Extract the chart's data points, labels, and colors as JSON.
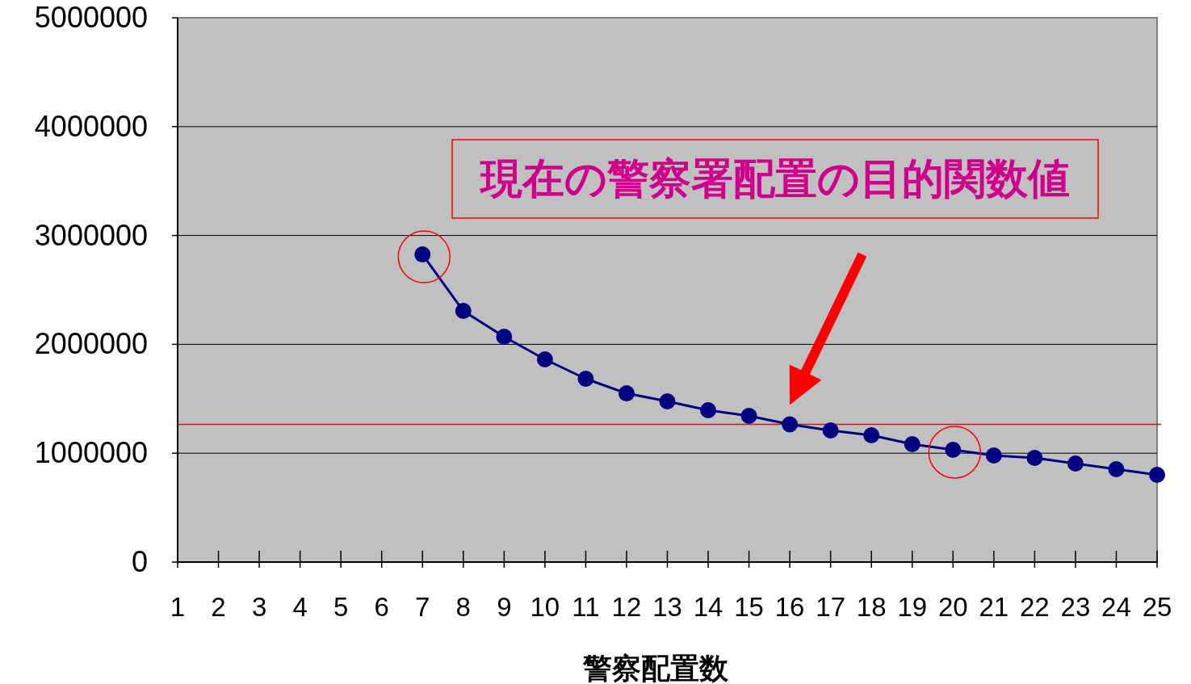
{
  "chart_data": {
    "type": "line",
    "xlabel": "警察配置数",
    "x": [
      7,
      8,
      9,
      10,
      11,
      12,
      13,
      14,
      15,
      16,
      17,
      18,
      19,
      20,
      21,
      22,
      23,
      24,
      25
    ],
    "values": [
      2826000,
      2307000,
      2070000,
      1862000,
      1684000,
      1550000,
      1476000,
      1395000,
      1343000,
      1265000,
      1209000,
      1165000,
      1083000,
      1031000,
      979000,
      957000,
      905000,
      853000,
      801000
    ],
    "color": "#000080",
    "marker": "circle",
    "line_style": "solid",
    "xlim": [
      1,
      25
    ],
    "xticks": [
      1,
      2,
      3,
      4,
      5,
      6,
      7,
      8,
      9,
      10,
      11,
      12,
      13,
      14,
      15,
      16,
      17,
      18,
      19,
      20,
      21,
      22,
      23,
      24,
      25
    ],
    "ylim": [
      0,
      5000000
    ],
    "yticks": [
      0,
      1000000,
      2000000,
      3000000,
      4000000,
      5000000
    ],
    "grid": "y",
    "ref_lines": [
      {
        "axis": "y",
        "value": 1265000,
        "color": "#ff0000"
      }
    ],
    "annotations": [
      "現在の警察署配置の目的関数値"
    ]
  }
}
